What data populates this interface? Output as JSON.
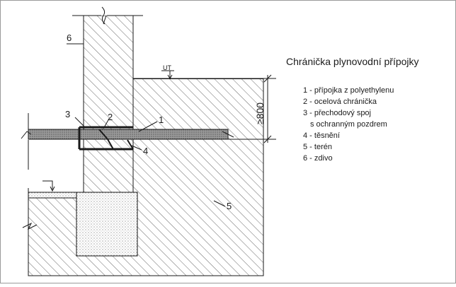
{
  "title": "Chránička plynovodní přípojky",
  "legend": [
    {
      "num": "1",
      "text": "1 - přípojka z polyethylenu"
    },
    {
      "num": "2",
      "text": "2 - ocelová chránička"
    },
    {
      "num": "3",
      "text": "3 - přechodový spoj"
    },
    {
      "num": "3b",
      "text": "s ochranným pozdrem"
    },
    {
      "num": "4",
      "text": "4 - těsnění"
    },
    {
      "num": "5",
      "text": "5 - terén"
    },
    {
      "num": "6",
      "text": "6 - zdivo"
    }
  ],
  "callouts": {
    "c1": "1",
    "c2": "2",
    "c3": "3",
    "c4": "4",
    "c5": "5",
    "c6": "6"
  },
  "level_label": "UT",
  "dimension": "≥800",
  "colors": {
    "line": "#1a1a1a",
    "hatch": "#6a6a6a",
    "pipe": "#8a8a8a",
    "frame": "#9a9a9a"
  }
}
